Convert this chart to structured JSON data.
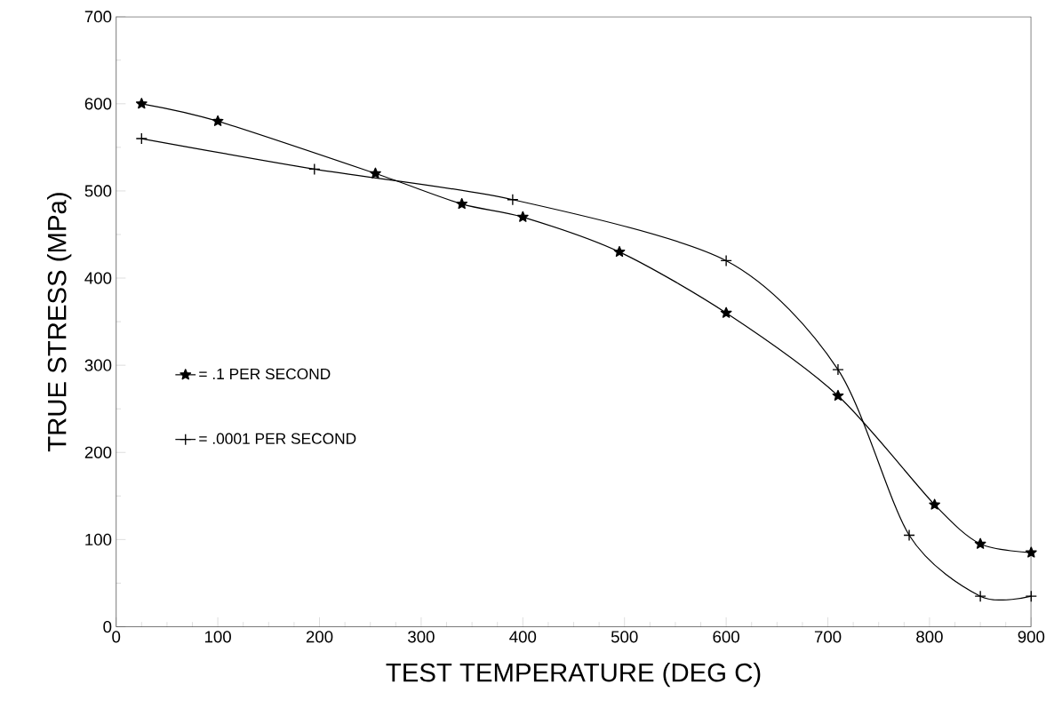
{
  "chart_data": {
    "type": "line",
    "xlabel": "TEST TEMPERATURE (DEG C)",
    "ylabel": "TRUE STRESS (MPa)",
    "xlim": [
      0,
      900
    ],
    "ylim": [
      0,
      700
    ],
    "xticks": [
      0,
      100,
      200,
      300,
      400,
      500,
      600,
      700,
      800,
      900
    ],
    "yticks": [
      0,
      100,
      200,
      300,
      400,
      500,
      600,
      700
    ],
    "grid": false,
    "legend": "left",
    "line_style": "solid",
    "series": [
      {
        "name": "= .1 PER SECOND",
        "color": "#000000",
        "marker": "star",
        "x": [
          25,
          100,
          255,
          340,
          400,
          495,
          600,
          710,
          805,
          850,
          900
        ],
        "values": [
          600,
          580,
          520,
          485,
          470,
          430,
          360,
          265,
          140,
          95,
          85
        ]
      },
      {
        "name": "= .0001 PER SECOND",
        "color": "#000000",
        "marker": "cross",
        "x": [
          25,
          195,
          390,
          600,
          710,
          780,
          850,
          900
        ],
        "values": [
          560,
          525,
          490,
          420,
          295,
          105,
          35,
          35
        ]
      }
    ]
  }
}
